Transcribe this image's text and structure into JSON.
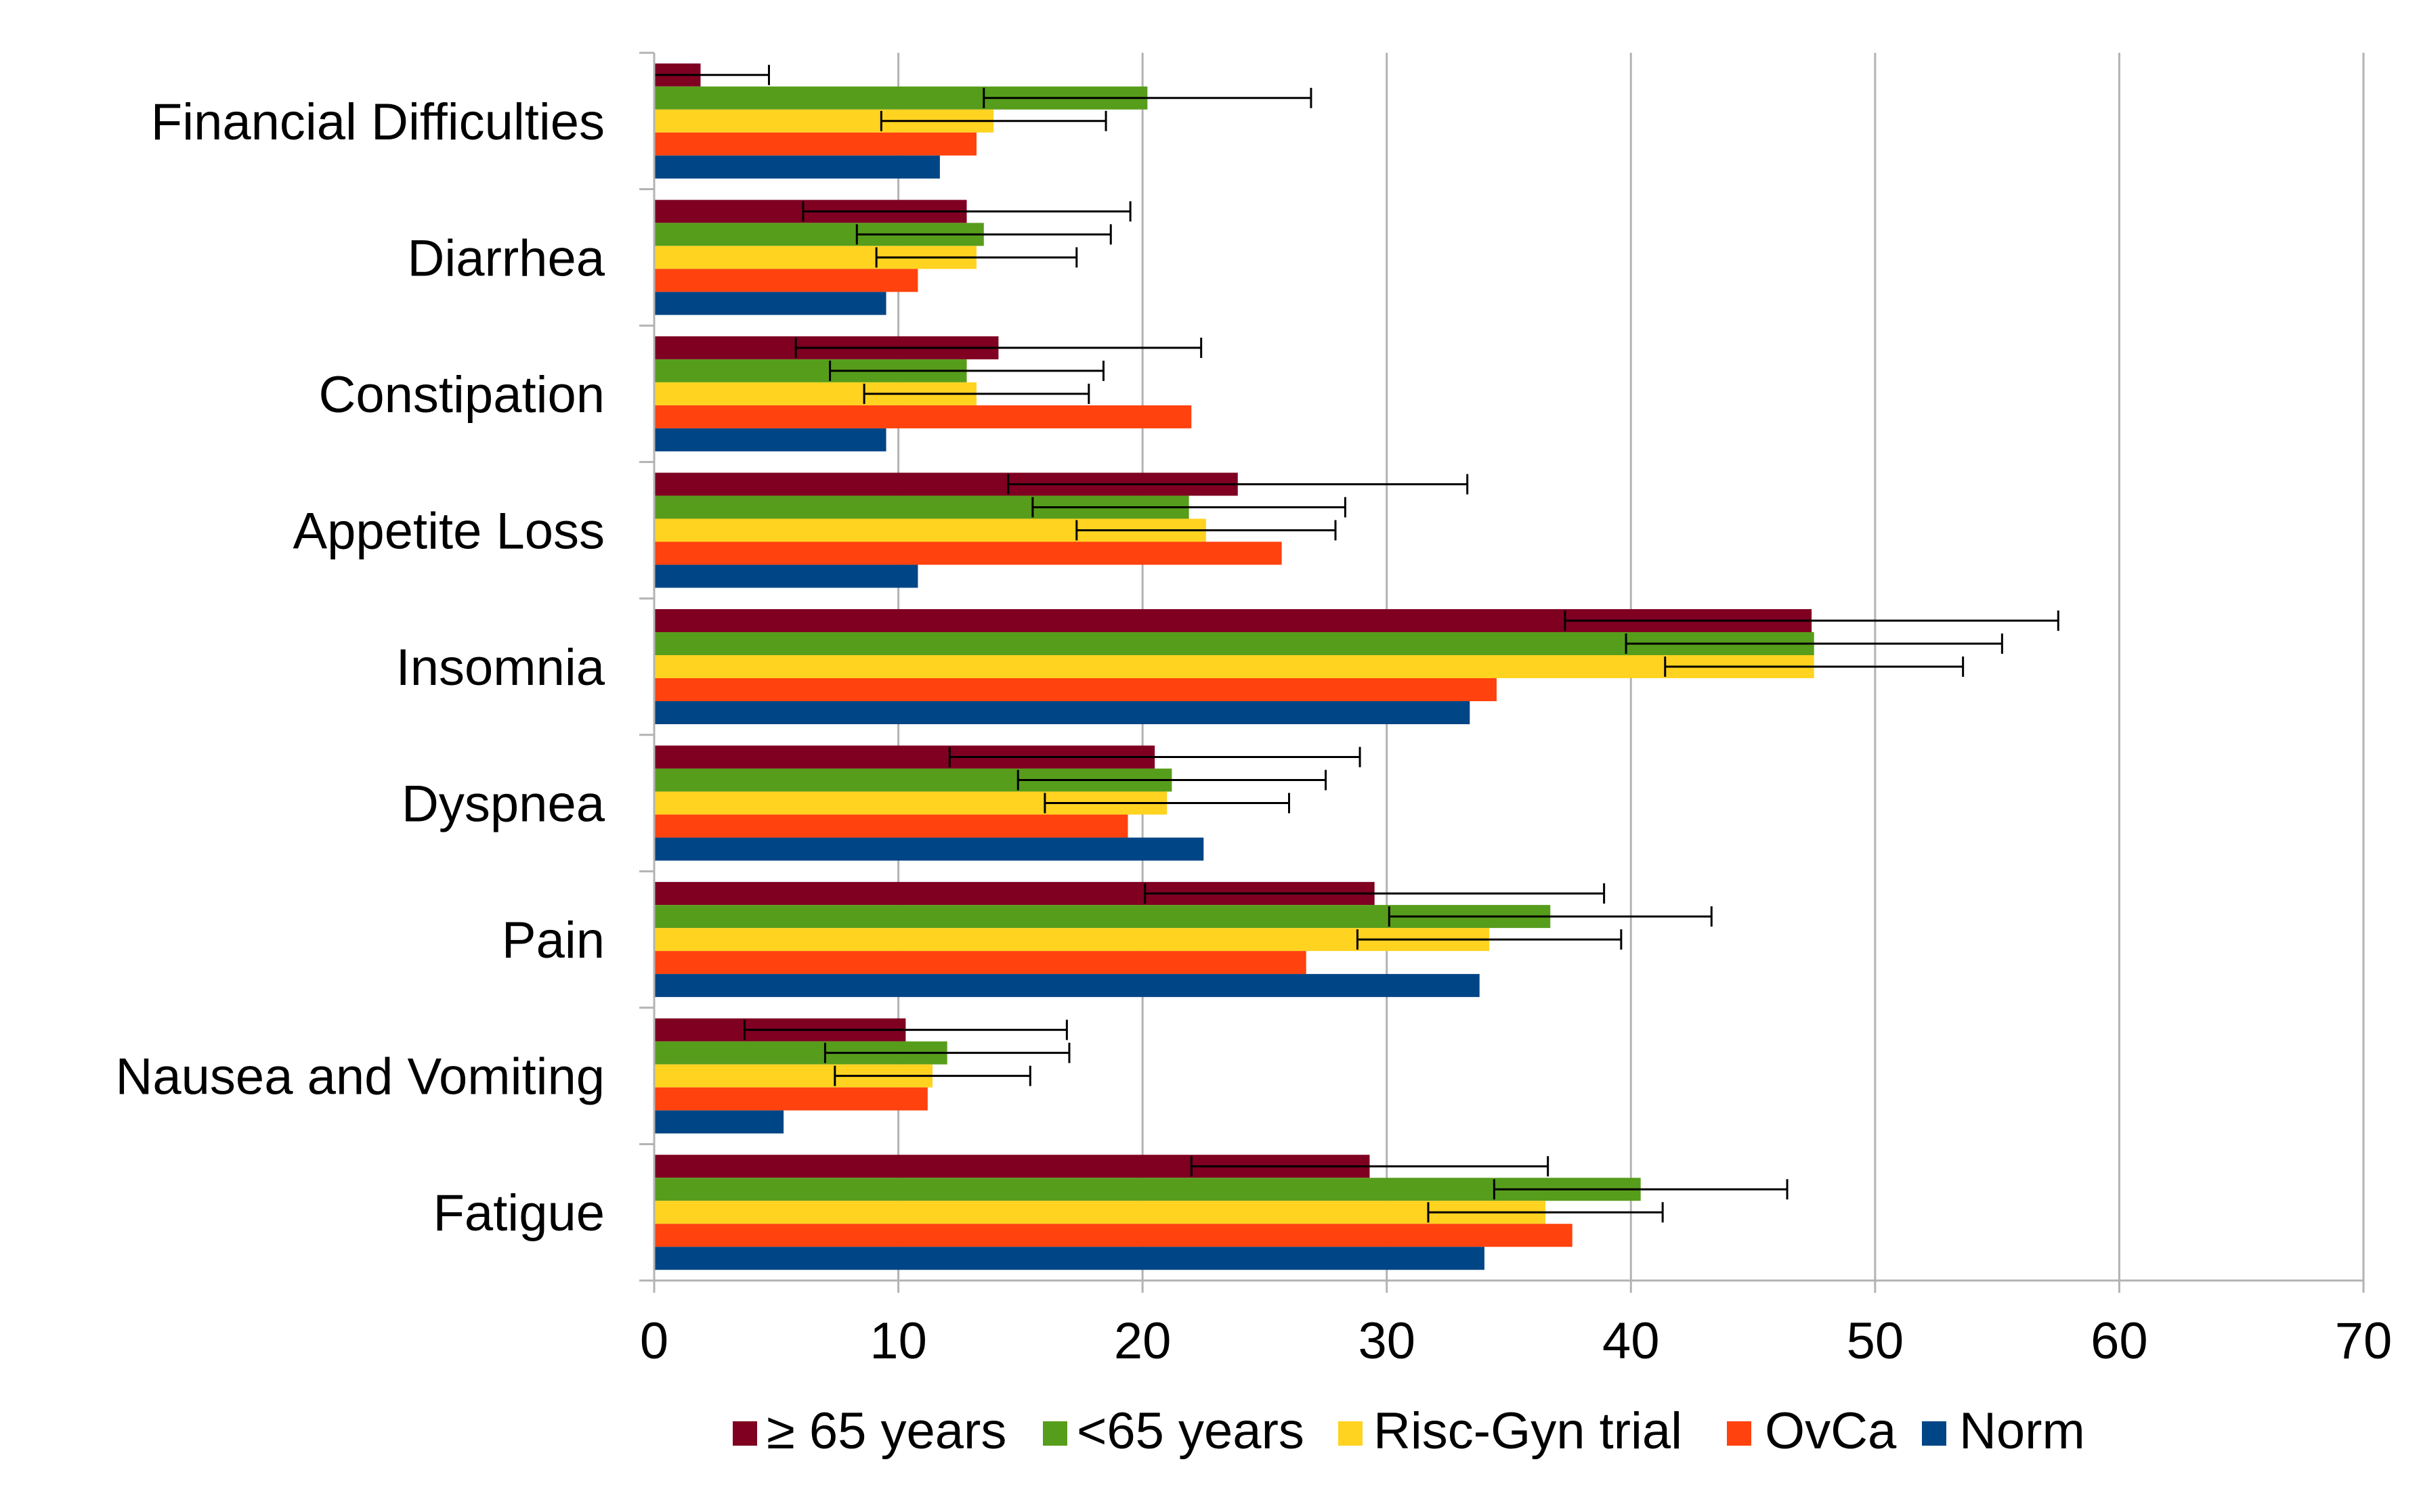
{
  "chart_data": {
    "type": "bar",
    "orientation": "horizontal",
    "title": "",
    "xlabel": "",
    "ylabel": "",
    "xlim": [
      0,
      70
    ],
    "x_ticks": [
      0,
      10,
      20,
      30,
      40,
      50,
      60,
      70
    ],
    "grid": true,
    "legend_position": "bottom",
    "categories": [
      "Financial Difficulties",
      "Diarrhea",
      "Constipation",
      "Appetite Loss",
      "Insomnia",
      "Dyspnea",
      "Pain",
      "Nausea and Vomiting",
      "Fatigue"
    ],
    "series": [
      {
        "name": "≥ 65 years",
        "color": "#7f0021",
        "values": [
          1.9,
          12.8,
          14.1,
          23.9,
          47.4,
          20.5,
          29.5,
          10.3,
          29.3
        ],
        "error": [
          2.8,
          6.7,
          8.3,
          9.4,
          10.1,
          8.4,
          9.4,
          6.6,
          7.3
        ]
      },
      {
        "name": "<65 years",
        "color": "#579d1c",
        "values": [
          20.2,
          13.5,
          12.8,
          21.9,
          47.5,
          21.2,
          36.7,
          12.0,
          40.4
        ],
        "error": [
          6.7,
          5.2,
          5.6,
          6.4,
          7.7,
          6.3,
          6.6,
          5.0,
          6.0
        ]
      },
      {
        "name": "Risc-Gyn trial",
        "color": "#ffd320",
        "values": [
          13.9,
          13.2,
          13.2,
          22.6,
          47.5,
          21.0,
          34.2,
          11.4,
          36.5
        ],
        "error": [
          4.6,
          4.1,
          4.6,
          5.3,
          6.1,
          5.0,
          5.4,
          4.0,
          4.8
        ]
      },
      {
        "name": "OvCa",
        "color": "#ff420e",
        "values": [
          13.2,
          10.8,
          22.0,
          25.7,
          34.5,
          19.4,
          26.7,
          11.2,
          37.6
        ],
        "error": null
      },
      {
        "name": "Norm",
        "color": "#004586",
        "values": [
          11.7,
          9.5,
          9.5,
          10.8,
          33.4,
          22.5,
          33.8,
          5.3,
          34.0
        ],
        "error": null
      }
    ]
  }
}
